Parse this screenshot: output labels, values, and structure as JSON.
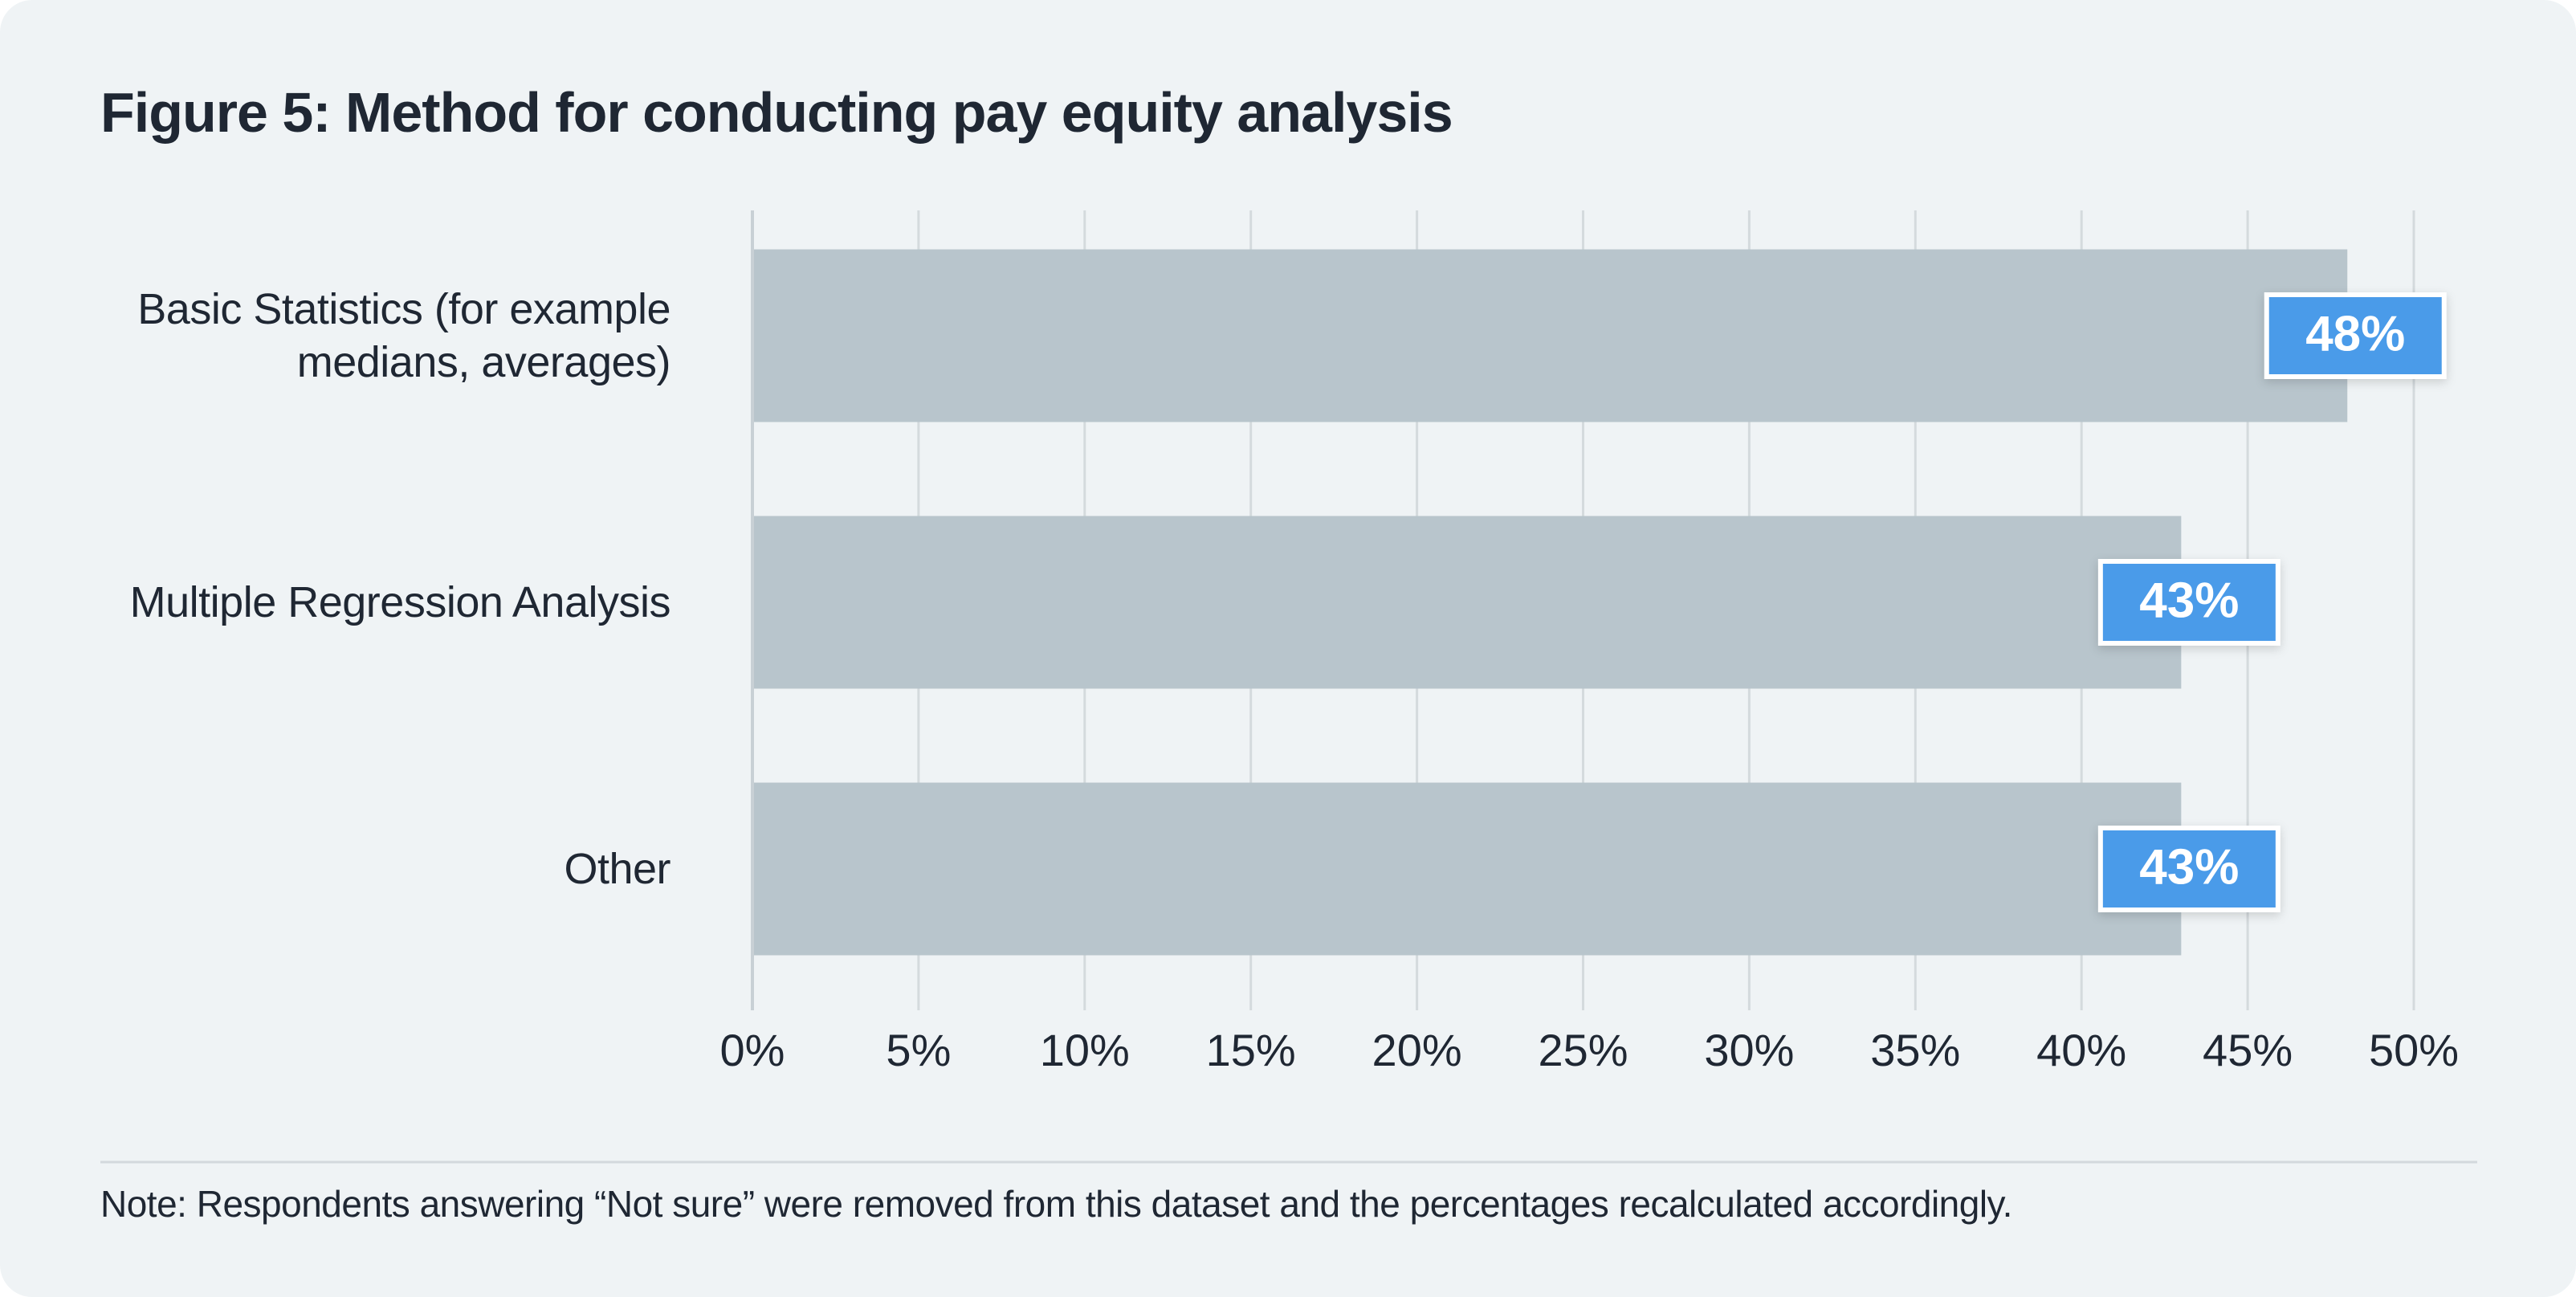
{
  "chart_data": {
    "type": "bar",
    "orientation": "horizontal",
    "title": "Figure 5: Method for conducting pay equity analysis",
    "categories": [
      "Basic Statistics (for example medians, averages)",
      "Multiple Regression Analysis",
      "Other"
    ],
    "values": [
      48,
      43,
      43
    ],
    "value_labels": [
      "48%",
      "43%",
      "43%"
    ],
    "color": "#b8c5cc",
    "label_color": "#4a9be9",
    "xlim": [
      0,
      50
    ],
    "xticks": [
      {
        "value": 0,
        "label": "0%"
      },
      {
        "value": 5,
        "label": "5%"
      },
      {
        "value": 10,
        "label": "10%"
      },
      {
        "value": 15,
        "label": "15%"
      },
      {
        "value": 20,
        "label": "20%"
      },
      {
        "value": 25,
        "label": "25%"
      },
      {
        "value": 30,
        "label": "30%"
      },
      {
        "value": 35,
        "label": "35%"
      },
      {
        "value": 40,
        "label": "40%"
      },
      {
        "value": 45,
        "label": "45%"
      },
      {
        "value": 50,
        "label": "50%"
      }
    ],
    "grid": true,
    "note": "Note: Respondents answering “Not sure” were removed from this dataset and the percentages recalculated accordingly."
  }
}
